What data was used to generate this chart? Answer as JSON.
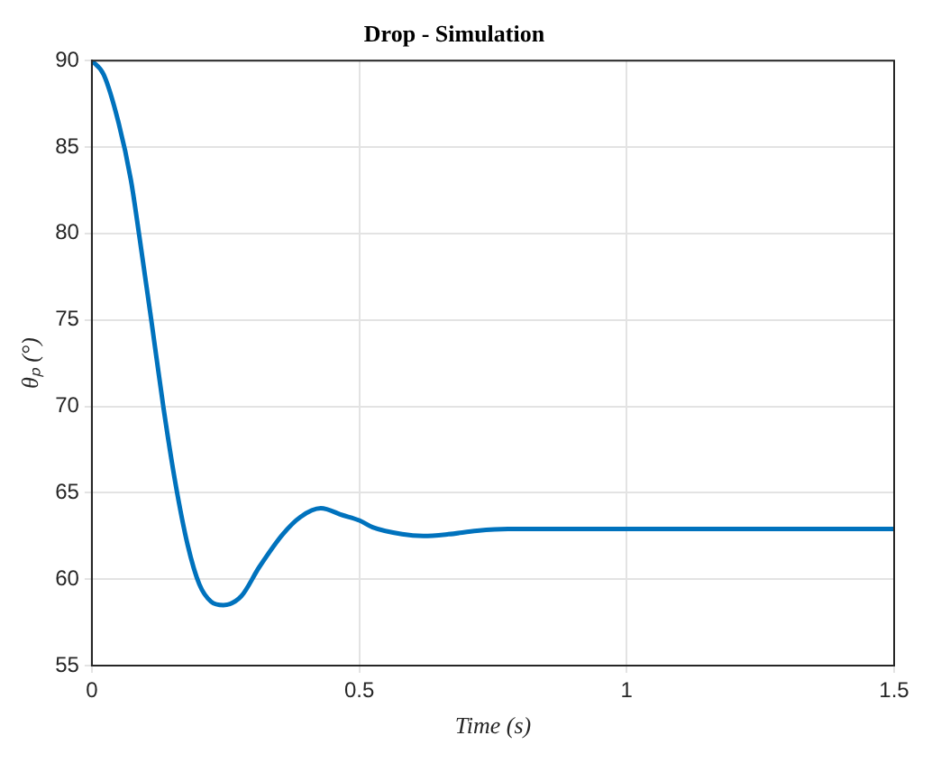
{
  "chart_data": {
    "type": "line",
    "title": "Drop - Simulation",
    "xlabel": "Time (s)",
    "ylabel": "θₚ (°)",
    "series": [
      {
        "color": "#0072bd",
        "x": [
          0,
          0.022,
          0.05,
          0.073,
          0.089,
          0.112,
          0.134,
          0.156,
          0.179,
          0.201,
          0.223,
          0.246,
          0.279,
          0.313,
          0.357,
          0.39,
          0.428,
          0.469,
          0.5,
          0.525,
          0.58,
          0.62,
          0.667,
          0.72,
          0.778,
          0.83,
          0.889,
          0.95,
          1.0,
          1.1,
          1.2,
          1.3,
          1.4,
          1.5
        ],
        "values": [
          90,
          89.2,
          86.4,
          83.1,
          79.8,
          74.8,
          69.9,
          65.6,
          62.0,
          59.7,
          58.7,
          58.5,
          59.0,
          60.7,
          62.6,
          63.6,
          64.1,
          63.7,
          63.4,
          63.0,
          62.6,
          62.5,
          62.6,
          62.8,
          62.9,
          62.9,
          62.9,
          62.9,
          62.9,
          62.9,
          62.9,
          62.9,
          62.9,
          62.9
        ]
      }
    ],
    "xlim": [
      0,
      1.5
    ],
    "xticks": [
      0,
      0.5,
      1,
      1.5
    ],
    "ylim": [
      55,
      90
    ],
    "yticks": [
      55,
      60,
      65,
      70,
      75,
      80,
      85,
      90
    ],
    "grid": true,
    "legend": false,
    "marker": "none",
    "line_style": "solid"
  }
}
